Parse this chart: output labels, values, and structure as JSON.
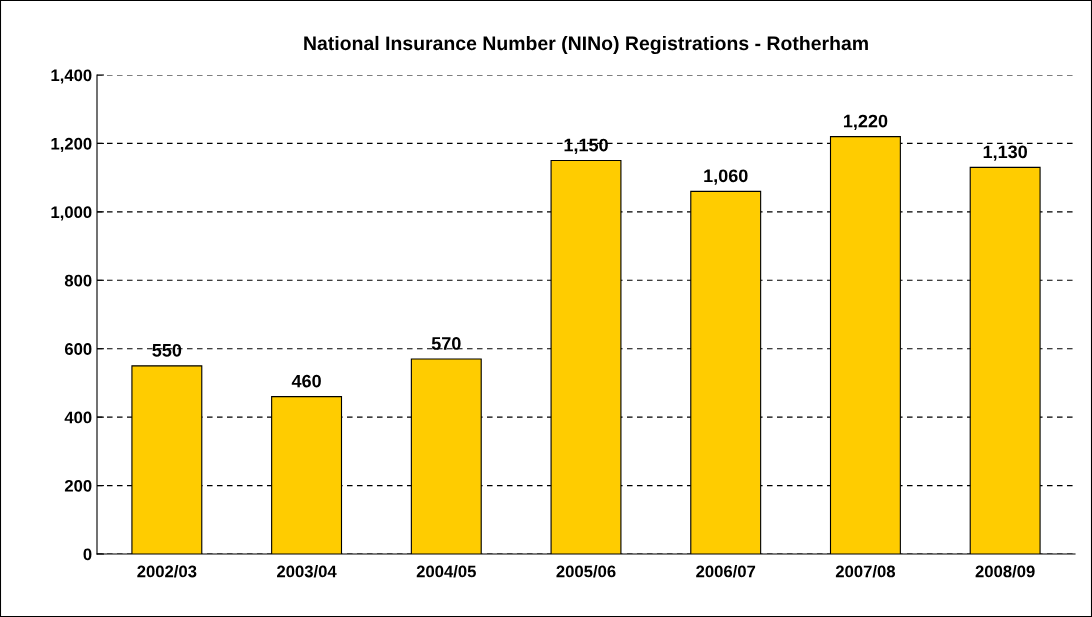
{
  "chart_data": {
    "type": "bar",
    "title": "National Insurance Number (NINo) Registrations - Rotherham",
    "categories": [
      "2002/03",
      "2003/04",
      "2004/05",
      "2005/06",
      "2006/07",
      "2007/08",
      "2008/09"
    ],
    "values": [
      550,
      460,
      570,
      1150,
      1060,
      1220,
      1130
    ],
    "value_labels": [
      "550",
      "460",
      "570",
      "1,150",
      "1,060",
      "1,220",
      "1,130"
    ],
    "color": "#ffcc00",
    "ylim": [
      0,
      1400
    ],
    "yticks": [
      0,
      200,
      400,
      600,
      800,
      {
        "value": 1000,
        "label": "1,000"
      },
      {
        "value": 1200,
        "label": "1,200"
      },
      {
        "value": 1400,
        "label": "1,400"
      }
    ],
    "grid": "y",
    "line_style": "dashed"
  }
}
